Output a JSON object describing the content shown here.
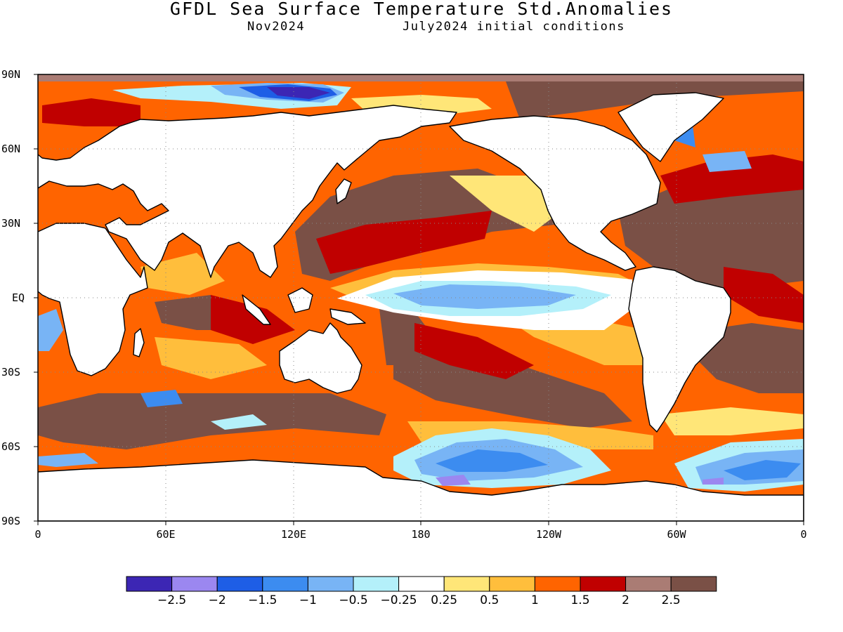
{
  "header": {
    "title": "GFDL Sea Surface Temperature Std.Anomalies",
    "valid_month": "Nov2024",
    "init_conditions": "July2024 initial conditions"
  },
  "map": {
    "projection": "equirectangular",
    "lat_range": [
      -90,
      90
    ],
    "lon_range": [
      0,
      360
    ],
    "lat_labels": [
      "90N",
      "60N",
      "30N",
      "EQ",
      "30S",
      "60S",
      "90S"
    ],
    "lon_labels": [
      "0",
      "60E",
      "120E",
      "180",
      "120W",
      "60W",
      "0"
    ],
    "grid": "dotted",
    "features": [
      {
        "name": "equatorial-pacific-cool-tongue",
        "level": -1.0
      },
      {
        "name": "southern-ocean-pacific-cool-anomaly",
        "level": -1.5
      },
      {
        "name": "south-atlantic-southern-ocean-cool-anomaly",
        "level": -1.5
      },
      {
        "name": "arctic-cool-anomaly",
        "level": -2.5
      },
      {
        "name": "north-pacific-warm-anomaly",
        "level": 2.5
      },
      {
        "name": "tropical-atlantic-warm-anomaly",
        "level": 2.5
      },
      {
        "name": "indian-ocean-warm-anomaly",
        "level": 2.0
      },
      {
        "name": "southern-ocean-indian-sector-warm-anomaly",
        "level": 2.5
      }
    ]
  },
  "colorbar": {
    "colors": [
      "#3c26b4",
      "#9b87f0",
      "#1e5ee6",
      "#3c8cf0",
      "#78b4f5",
      "#b4f0fa",
      "#ffffff",
      "#ffe678",
      "#ffbe3c",
      "#ff6400",
      "#c00000",
      "#aa7c74",
      "#7a5046"
    ],
    "labels": [
      "-2.5",
      "-2",
      "-1.5",
      "-1",
      "-0.5",
      "-0.25",
      "0.25",
      "0.5",
      "1",
      "1.5",
      "2",
      "2.5"
    ]
  }
}
